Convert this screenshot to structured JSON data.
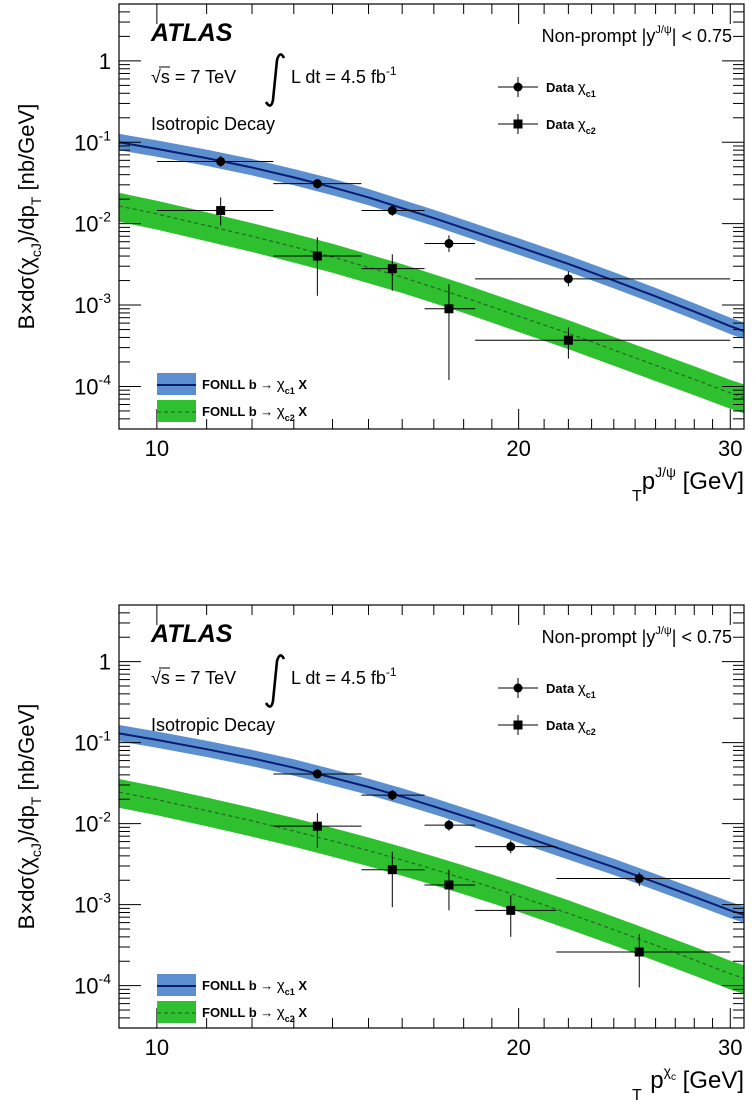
{
  "chart_data": [
    {
      "type": "scatter",
      "title": "",
      "experiment": "ATLAS",
      "energy_label": "√s = 7 TeV",
      "lumi_label": "L dt = 4.5 fb",
      "lumi_exp": "-1",
      "decay_label": "Isotropic Decay",
      "selection_label": "Non-prompt |y",
      "selection_sup": "J/ψ",
      "selection_cut": "| < 0.75",
      "ylabel": "B×dσ(χ",
      "ylabel_sub": "cJ",
      "ylabel_mid": ")/dp",
      "ylabel_sub2": "T",
      "ylabel_end": " [nb/GeV]",
      "xlabel": "p",
      "xlabel_sub": "T",
      "xlabel_sup": "J/ψ",
      "xlabel_end": " [GeV]",
      "x_scale": "log",
      "y_scale": "log",
      "xlim": [
        9.3,
        30.8
      ],
      "ylim": [
        3e-05,
        5
      ],
      "x_ticks": [
        {
          "value": 10,
          "label": "10"
        },
        {
          "value": 20,
          "label": "20"
        },
        {
          "value": 30,
          "label": "30"
        }
      ],
      "y_ticks": [
        {
          "value": 1,
          "label": "1",
          "sup": ""
        },
        {
          "value": 0.1,
          "label": "10",
          "sup": "-1"
        },
        {
          "value": 0.01,
          "label": "10",
          "sup": "-2"
        },
        {
          "value": 0.001,
          "label": "10",
          "sup": "-3"
        },
        {
          "value": 0.0001,
          "label": "10",
          "sup": "-4"
        }
      ],
      "legend_data": [
        {
          "label": "Data",
          "sub": "χ",
          "subsub": "c1",
          "marker": "circle"
        },
        {
          "label": "Data",
          "sub": "χ",
          "subsub": "c2",
          "marker": "square"
        }
      ],
      "legend_theory": [
        {
          "label": "FONLL b",
          "arrow": "→",
          "chi": "χ",
          "sub": "c1",
          "end": " X",
          "color": "#5b8fd0",
          "line": "#0a1c6e",
          "dash": false
        },
        {
          "label": "FONLL b",
          "arrow": "→",
          "chi": "χ",
          "sub": "c2",
          "end": " X",
          "color": "#2fc02f",
          "line": "#2a6a2a",
          "dash": true
        }
      ],
      "series": [
        {
          "name": "Data χc1",
          "marker": "circle",
          "points": [
            {
              "x": 11.3,
              "xlo": 10.0,
              "xhi": 12.5,
              "y": 0.058,
              "ylo": 0.05,
              "yhi": 0.068
            },
            {
              "x": 13.6,
              "xlo": 12.5,
              "xhi": 14.8,
              "y": 0.031,
              "ylo": 0.027,
              "yhi": 0.035
            },
            {
              "x": 15.7,
              "xlo": 14.8,
              "xhi": 16.7,
              "y": 0.0145,
              "ylo": 0.0125,
              "yhi": 0.0168
            },
            {
              "x": 17.5,
              "xlo": 16.7,
              "xhi": 18.4,
              "y": 0.0057,
              "ylo": 0.0045,
              "yhi": 0.0072
            },
            {
              "x": 22.0,
              "xlo": 18.4,
              "xhi": 30.0,
              "y": 0.0021,
              "ylo": 0.0017,
              "yhi": 0.0026
            }
          ]
        },
        {
          "name": "Data χc2",
          "marker": "square",
          "points": [
            {
              "x": 11.3,
              "xlo": 10.0,
              "xhi": 12.5,
              "y": 0.0145,
              "ylo": 0.0095,
              "yhi": 0.021
            },
            {
              "x": 13.6,
              "xlo": 12.5,
              "xhi": 14.8,
              "y": 0.004,
              "ylo": 0.0013,
              "yhi": 0.0068
            },
            {
              "x": 15.7,
              "xlo": 14.8,
              "xhi": 16.7,
              "y": 0.0028,
              "ylo": 0.0015,
              "yhi": 0.0042
            },
            {
              "x": 17.5,
              "xlo": 16.7,
              "xhi": 18.4,
              "y": 0.0009,
              "ylo": 0.00012,
              "yhi": 0.0018
            },
            {
              "x": 22.0,
              "xlo": 18.4,
              "xhi": 30.0,
              "y": 0.00037,
              "ylo": 0.00022,
              "yhi": 0.00053
            }
          ]
        }
      ],
      "theory": [
        {
          "name": "FONLL b → χc1 X",
          "x": [
            9.3,
            10,
            11,
            12,
            13,
            14,
            15,
            16,
            17,
            18,
            19,
            20,
            22,
            24,
            26,
            28,
            30,
            30.8
          ],
          "y": [
            0.1,
            0.083,
            0.064,
            0.049,
            0.037,
            0.028,
            0.021,
            0.0155,
            0.0117,
            0.0088,
            0.0067,
            0.0052,
            0.0032,
            0.002,
            0.00128,
            0.00083,
            0.00055,
            0.00048
          ],
          "band_lo_factor": 0.8,
          "band_hi_factor": 1.27
        },
        {
          "name": "FONLL b → χc2 X",
          "x": [
            9.3,
            10,
            11,
            12,
            13,
            14,
            15,
            16,
            17,
            18,
            19,
            20,
            22,
            24,
            26,
            28,
            30,
            30.8
          ],
          "y": [
            0.0165,
            0.0132,
            0.0095,
            0.007,
            0.0052,
            0.0039,
            0.0029,
            0.0022,
            0.00165,
            0.00125,
            0.00095,
            0.00073,
            0.00045,
            0.00028,
            0.000182,
            0.000122,
            8.3e-05,
            7.3e-05
          ],
          "band_lo_factor": 0.64,
          "band_hi_factor": 1.45
        }
      ]
    },
    {
      "type": "scatter",
      "title": "",
      "experiment": "ATLAS",
      "energy_label": "√s = 7 TeV",
      "lumi_label": "L dt = 4.5 fb",
      "lumi_exp": "-1",
      "decay_label": "Isotropic Decay",
      "selection_label": "Non-prompt |y",
      "selection_sup": "J/ψ",
      "selection_cut": "| < 0.75",
      "ylabel": "B×dσ(χ",
      "ylabel_sub": "cJ",
      "ylabel_mid": ")/dp",
      "ylabel_sub2": "T",
      "ylabel_end": " [nb/GeV]",
      "xlabel": "p",
      "xlabel_sub": "T",
      "xlabel_sup": "χ",
      "xlabel_supsub": "c",
      "xlabel_end": " [GeV]",
      "x_scale": "log",
      "y_scale": "log",
      "xlim": [
        9.3,
        30.8
      ],
      "ylim": [
        3e-05,
        5
      ],
      "x_ticks": [
        {
          "value": 10,
          "label": "10"
        },
        {
          "value": 20,
          "label": "20"
        },
        {
          "value": 30,
          "label": "30"
        }
      ],
      "y_ticks": [
        {
          "value": 1,
          "label": "1",
          "sup": ""
        },
        {
          "value": 0.1,
          "label": "10",
          "sup": "-1"
        },
        {
          "value": 0.01,
          "label": "10",
          "sup": "-2"
        },
        {
          "value": 0.001,
          "label": "10",
          "sup": "-3"
        },
        {
          "value": 0.0001,
          "label": "10",
          "sup": "-4"
        }
      ],
      "legend_data": [
        {
          "label": "Data",
          "sub": "χ",
          "subsub": "c1",
          "marker": "circle"
        },
        {
          "label": "Data",
          "sub": "χ",
          "subsub": "c2",
          "marker": "square"
        }
      ],
      "legend_theory": [
        {
          "label": "FONLL b",
          "arrow": "→",
          "chi": "χ",
          "sub": "c1",
          "end": " X",
          "color": "#5b8fd0",
          "line": "#0a1c6e",
          "dash": false
        },
        {
          "label": "FONLL b",
          "arrow": "→",
          "chi": "χ",
          "sub": "c2",
          "end": " X",
          "color": "#2fc02f",
          "line": "#2a6a2a",
          "dash": true
        }
      ],
      "series": [
        {
          "name": "Data χc1",
          "marker": "circle",
          "points": [
            {
              "x": 13.6,
              "xlo": 12.5,
              "xhi": 14.8,
              "y": 0.041,
              "ylo": 0.036,
              "yhi": 0.047
            },
            {
              "x": 15.7,
              "xlo": 14.8,
              "xhi": 16.7,
              "y": 0.0225,
              "ylo": 0.0195,
              "yhi": 0.026
            },
            {
              "x": 17.5,
              "xlo": 16.7,
              "xhi": 18.4,
              "y": 0.0096,
              "ylo": 0.0082,
              "yhi": 0.0112
            },
            {
              "x": 19.7,
              "xlo": 18.4,
              "xhi": 21.5,
              "y": 0.0052,
              "ylo": 0.0043,
              "yhi": 0.0062
            },
            {
              "x": 25.2,
              "xlo": 21.5,
              "xhi": 30.0,
              "y": 0.0021,
              "ylo": 0.0017,
              "yhi": 0.0025
            }
          ]
        },
        {
          "name": "Data χc2",
          "marker": "square",
          "points": [
            {
              "x": 13.6,
              "xlo": 12.5,
              "xhi": 14.8,
              "y": 0.0093,
              "ylo": 0.005,
              "yhi": 0.0135
            },
            {
              "x": 15.7,
              "xlo": 14.8,
              "xhi": 16.7,
              "y": 0.0027,
              "ylo": 0.00093,
              "yhi": 0.0045
            },
            {
              "x": 17.5,
              "xlo": 16.7,
              "xhi": 18.4,
              "y": 0.00175,
              "ylo": 0.00085,
              "yhi": 0.0027
            },
            {
              "x": 19.7,
              "xlo": 18.4,
              "xhi": 21.5,
              "y": 0.00085,
              "ylo": 0.0004,
              "yhi": 0.0013
            },
            {
              "x": 25.2,
              "xlo": 21.5,
              "xhi": 30.0,
              "y": 0.00026,
              "ylo": 9.5e-05,
              "yhi": 0.00043
            }
          ]
        }
      ],
      "theory": [
        {
          "name": "FONLL b → χc1 X",
          "x": [
            9.3,
            10,
            11,
            12,
            13,
            14,
            15,
            16,
            17,
            18,
            19,
            20,
            22,
            24,
            26,
            28,
            30,
            30.8
          ],
          "y": [
            0.13,
            0.108,
            0.083,
            0.064,
            0.049,
            0.037,
            0.0283,
            0.0215,
            0.0163,
            0.0124,
            0.0095,
            0.0073,
            0.0045,
            0.0029,
            0.00188,
            0.00125,
            0.00085,
            0.00075
          ],
          "band_lo_factor": 0.8,
          "band_hi_factor": 1.27
        },
        {
          "name": "FONLL b → χc2 X",
          "x": [
            9.3,
            10,
            11,
            12,
            13,
            14,
            15,
            16,
            17,
            18,
            19,
            20,
            22,
            24,
            26,
            28,
            30,
            30.8
          ],
          "y": [
            0.0245,
            0.0198,
            0.0145,
            0.0108,
            0.0081,
            0.0061,
            0.00465,
            0.00355,
            0.00272,
            0.0021,
            0.00163,
            0.00127,
            0.00078,
            0.00049,
            0.000315,
            0.000208,
            0.00014,
            0.000123
          ],
          "band_lo_factor": 0.64,
          "band_hi_factor": 1.45
        }
      ]
    }
  ]
}
